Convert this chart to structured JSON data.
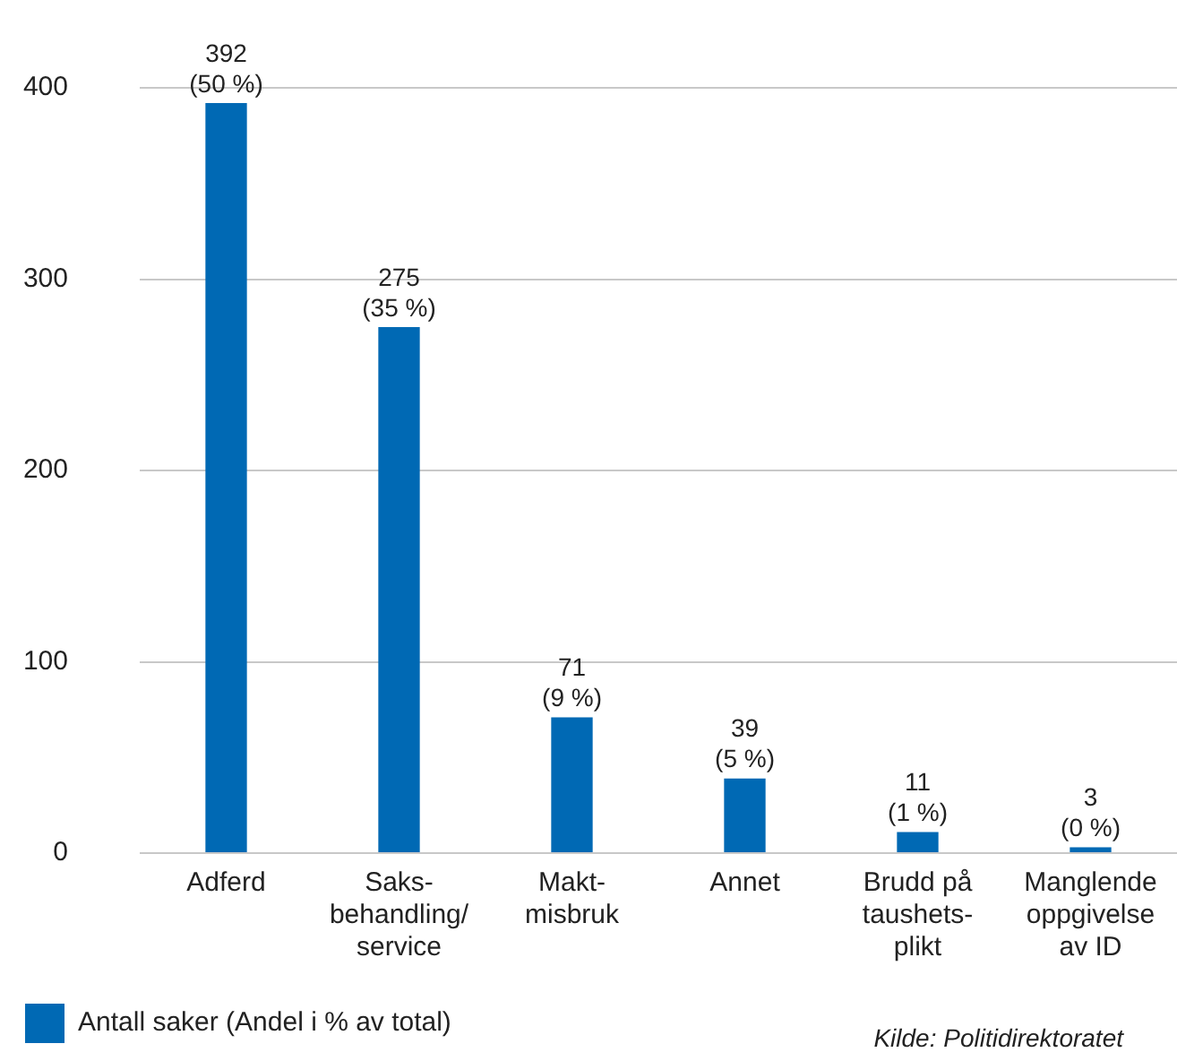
{
  "chart_data": {
    "type": "bar",
    "categories": [
      "Adferd",
      "Saks-\nbehandling/\nservice",
      "Makt-\nmisbruk",
      "Annet",
      "Brudd på\ntaushets-\nplikt",
      "Manglende\noppgivelse\nav ID"
    ],
    "series": [
      {
        "name": "Antall saker (Andel i % av total)",
        "color": "#0069b4",
        "values": [
          392,
          275,
          71,
          39,
          11,
          3
        ],
        "value_labels": [
          "392\n(50 %)",
          "275\n(35 %)",
          "71\n(9 %)",
          "39\n(5 %)",
          "11\n(1 %)",
          "3\n(0 %)"
        ]
      }
    ],
    "ylim": [
      0,
      400
    ],
    "yticks": [
      0,
      100,
      200,
      300,
      400
    ],
    "grid": "y",
    "legend": "bottom left",
    "annotations": [
      "Kilde: Politidirektoratet"
    ]
  }
}
